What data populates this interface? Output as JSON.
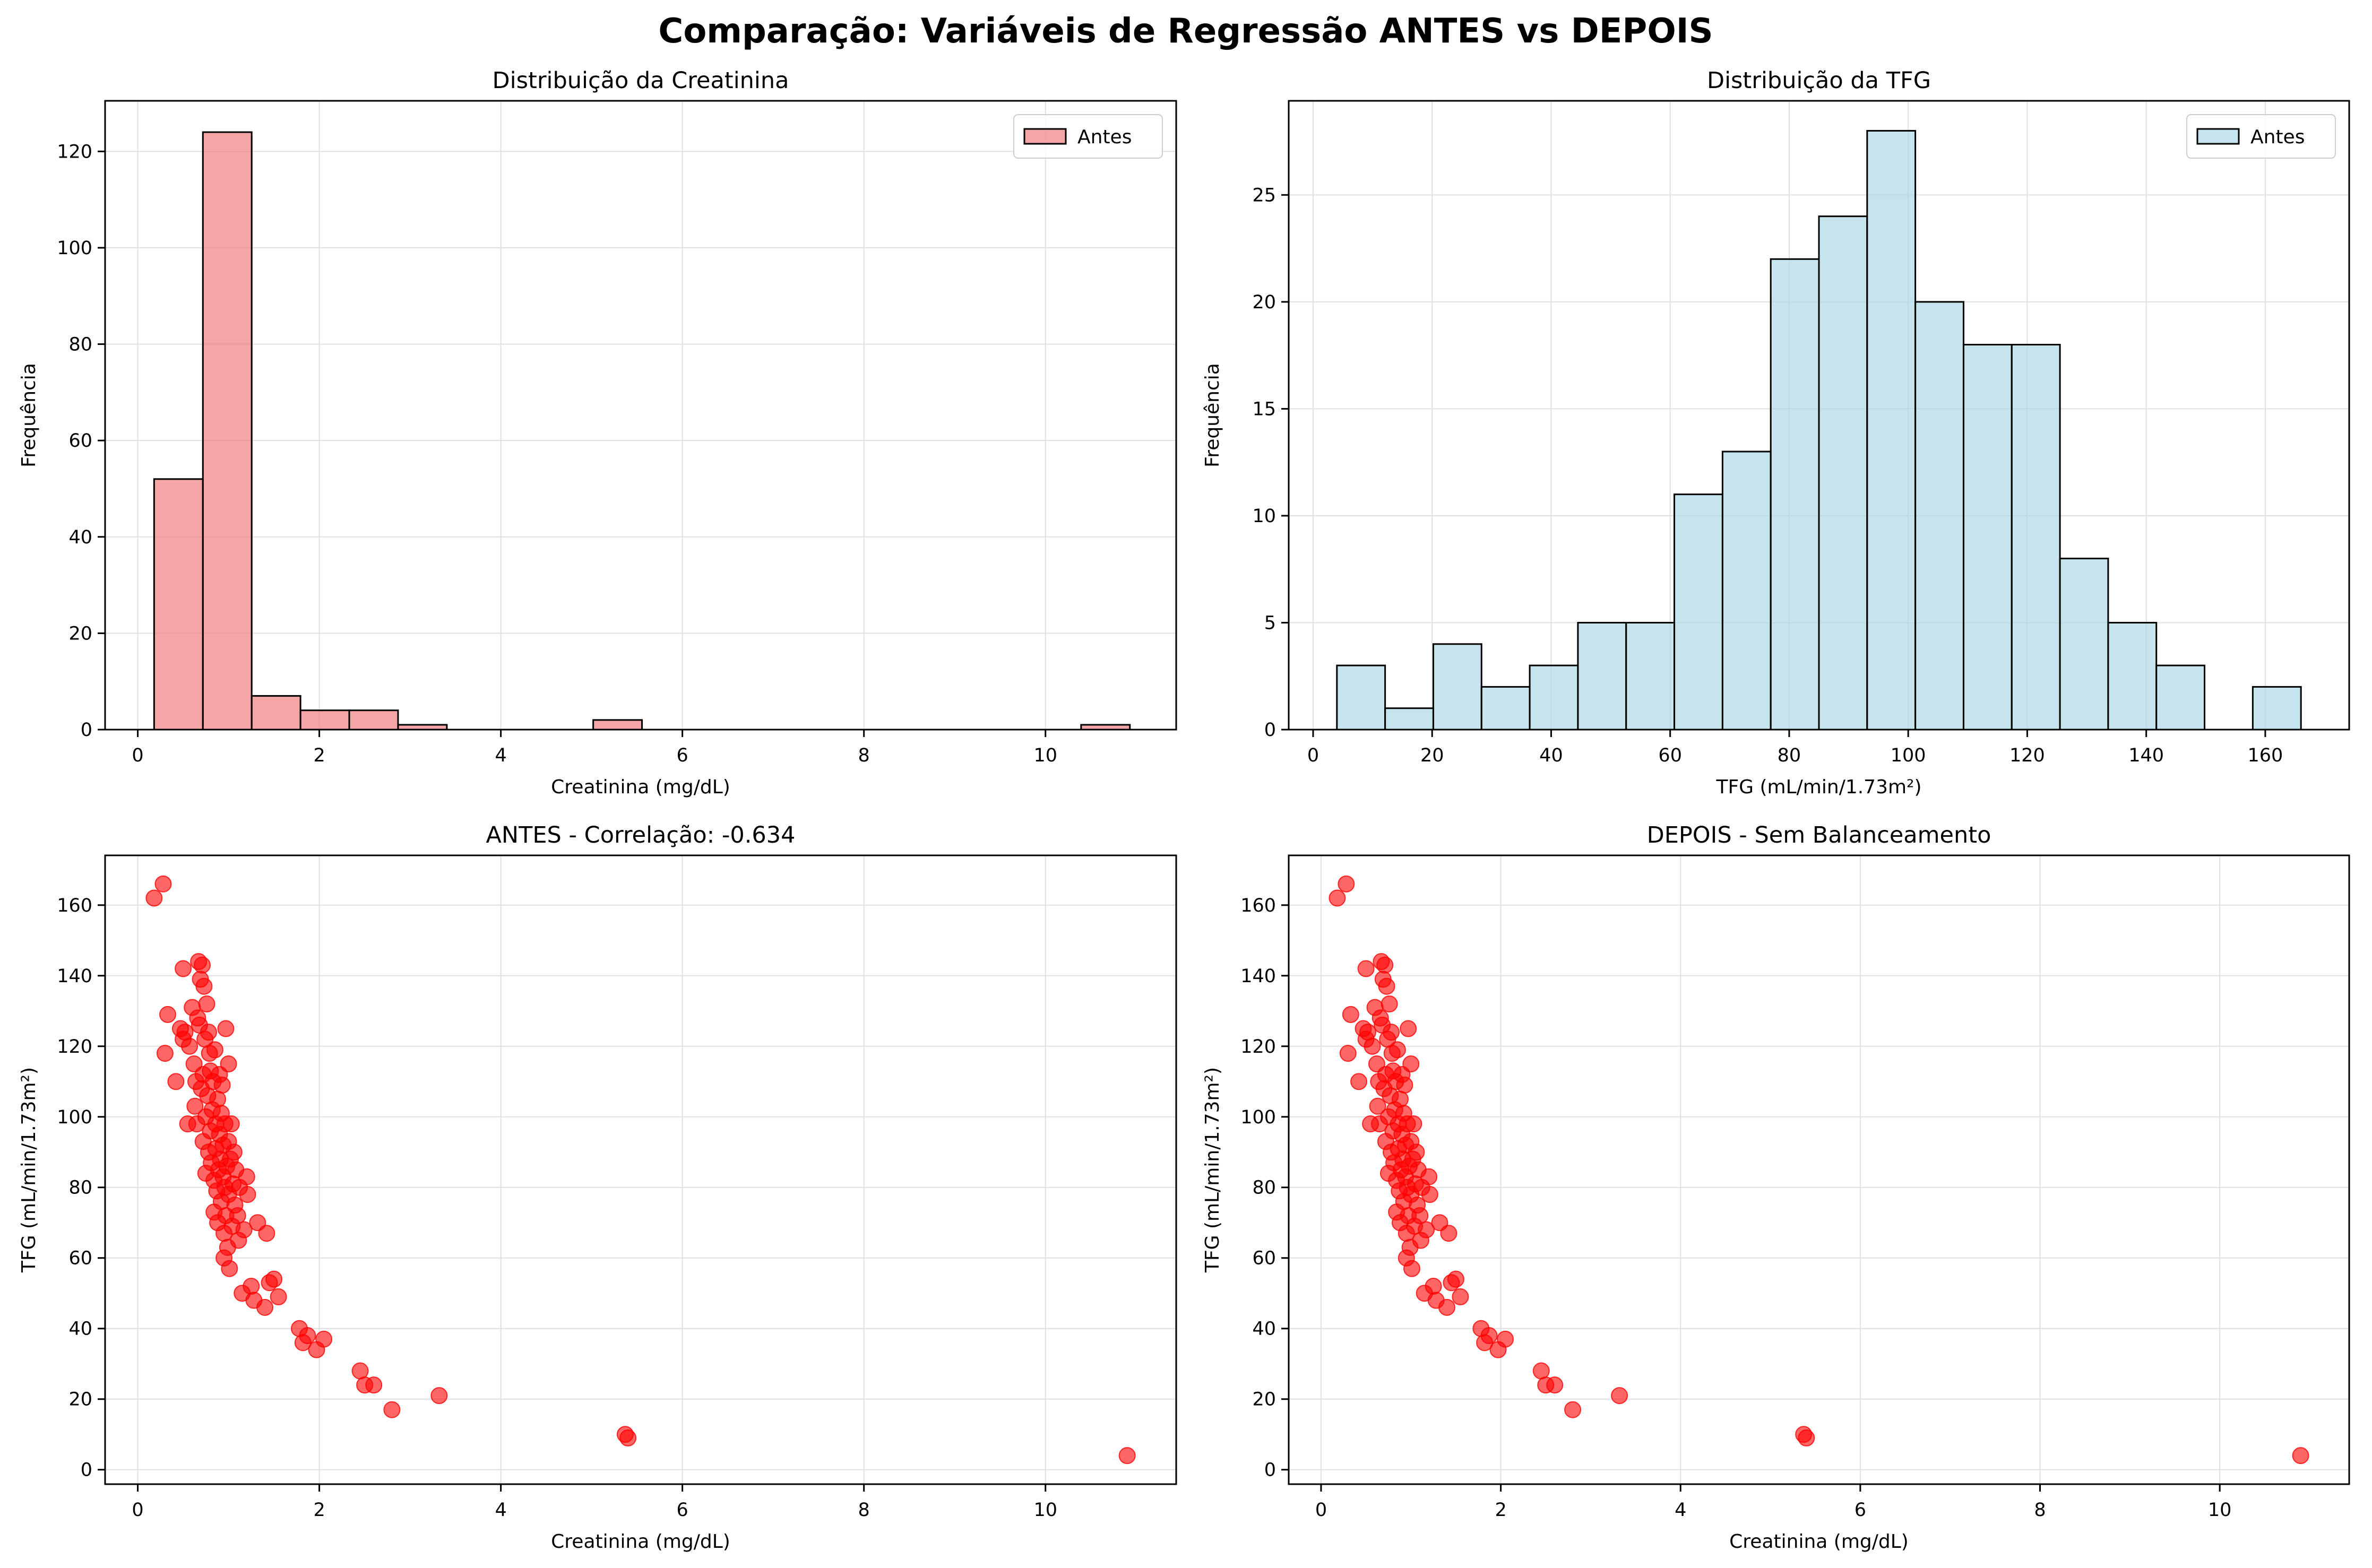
{
  "figure": {
    "suptitle": "Comparação: Variáveis de Regressão ANTES vs DEPOIS"
  },
  "colors": {
    "creat_hist": "#f08080",
    "tfg_hist": "#add8e6",
    "scatter": "#ff0000",
    "edge": "#000000",
    "grid": "#e0e0e0"
  },
  "chart_data": [
    {
      "id": "hist-creat",
      "type": "bar",
      "title": "Distribuição da Creatinina",
      "xlabel": "Creatinina (mg/dL)",
      "ylabel": "Frequência",
      "xlim": [
        -0.36,
        11.44
      ],
      "ylim": [
        0,
        130.5
      ],
      "xticks": [
        0,
        2,
        4,
        6,
        8,
        10
      ],
      "yticks": [
        0,
        20,
        40,
        60,
        80,
        100,
        120
      ],
      "bin_start": 0.18,
      "bin_width": 0.5375,
      "counts": [
        52,
        124,
        7,
        4,
        4,
        1,
        0,
        0,
        0,
        2,
        0,
        0,
        0,
        0,
        0,
        0,
        0,
        0,
        0,
        1
      ],
      "legend": {
        "label": "Antes",
        "placement": "top-right"
      },
      "grid": true
    },
    {
      "id": "hist-tfg",
      "type": "bar",
      "title": "Distribuição da TFG",
      "xlabel": "TFG (mL/min/1.73m²)",
      "ylabel": "Frequência",
      "xlim": [
        -4.1,
        174.1
      ],
      "ylim": [
        0,
        29.4
      ],
      "xticks": [
        0,
        20,
        40,
        60,
        80,
        100,
        120,
        140,
        160
      ],
      "yticks": [
        0,
        5,
        10,
        15,
        20,
        25
      ],
      "bin_start": 4,
      "bin_width": 8.1,
      "counts": [
        3,
        1,
        4,
        2,
        3,
        5,
        5,
        11,
        13,
        22,
        24,
        28,
        20,
        18,
        18,
        8,
        5,
        3,
        0,
        2
      ],
      "legend": {
        "label": "Antes",
        "placement": "top-right"
      },
      "grid": true
    },
    {
      "id": "scatter-antes",
      "type": "scatter",
      "title": "ANTES - Correlação: -0.634",
      "xlabel": "Creatinina (mg/dL)",
      "ylabel": "TFG (mL/min/1.73m²)",
      "xlim": [
        -0.36,
        11.44
      ],
      "ylim": [
        -4.1,
        174.1
      ],
      "xticks": [
        0,
        2,
        4,
        6,
        8,
        10
      ],
      "yticks": [
        0,
        20,
        40,
        60,
        80,
        100,
        120,
        140,
        160
      ],
      "points": [
        [
          0.18,
          162
        ],
        [
          0.28,
          166
        ],
        [
          0.3,
          118
        ],
        [
          0.33,
          129
        ],
        [
          0.42,
          110
        ],
        [
          0.47,
          125
        ],
        [
          0.5,
          142
        ],
        [
          0.5,
          122
        ],
        [
          0.52,
          124
        ],
        [
          0.55,
          98
        ],
        [
          0.57,
          120
        ],
        [
          0.6,
          131
        ],
        [
          0.62,
          115
        ],
        [
          0.63,
          103
        ],
        [
          0.64,
          110
        ],
        [
          0.65,
          98
        ],
        [
          0.66,
          128
        ],
        [
          0.67,
          144
        ],
        [
          0.68,
          126
        ],
        [
          0.69,
          139
        ],
        [
          0.7,
          108
        ],
        [
          0.71,
          143
        ],
        [
          0.72,
          93
        ],
        [
          0.72,
          112
        ],
        [
          0.73,
          137
        ],
        [
          0.74,
          122
        ],
        [
          0.75,
          84
        ],
        [
          0.75,
          100
        ],
        [
          0.76,
          132
        ],
        [
          0.77,
          106
        ],
        [
          0.78,
          124
        ],
        [
          0.78,
          90
        ],
        [
          0.79,
          118
        ],
        [
          0.8,
          113
        ],
        [
          0.8,
          96
        ],
        [
          0.81,
          87
        ],
        [
          0.82,
          102
        ],
        [
          0.83,
          110
        ],
        [
          0.84,
          73
        ],
        [
          0.84,
          82
        ],
        [
          0.85,
          119
        ],
        [
          0.86,
          98
        ],
        [
          0.86,
          91
        ],
        [
          0.87,
          79
        ],
        [
          0.88,
          105
        ],
        [
          0.88,
          70
        ],
        [
          0.89,
          85
        ],
        [
          0.9,
          95
        ],
        [
          0.9,
          112
        ],
        [
          0.91,
          88
        ],
        [
          0.92,
          76
        ],
        [
          0.92,
          101
        ],
        [
          0.93,
          109
        ],
        [
          0.94,
          83
        ],
        [
          0.94,
          92
        ],
        [
          0.95,
          60
        ],
        [
          0.95,
          67
        ],
        [
          0.96,
          98
        ],
        [
          0.96,
          80
        ],
        [
          0.97,
          72
        ],
        [
          0.97,
          125
        ],
        [
          0.98,
          86
        ],
        [
          0.99,
          63
        ],
        [
          1.0,
          115
        ],
        [
          1.0,
          93
        ],
        [
          1.0,
          78
        ],
        [
          1.01,
          57
        ],
        [
          1.02,
          88
        ],
        [
          1.03,
          98
        ],
        [
          1.04,
          69
        ],
        [
          1.05,
          81
        ],
        [
          1.06,
          90
        ],
        [
          1.07,
          75
        ],
        [
          1.08,
          85
        ],
        [
          1.1,
          72
        ],
        [
          1.11,
          65
        ],
        [
          1.12,
          80
        ],
        [
          1.15,
          50
        ],
        [
          1.17,
          68
        ],
        [
          1.2,
          83
        ],
        [
          1.21,
          78
        ],
        [
          1.25,
          52
        ],
        [
          1.28,
          48
        ],
        [
          1.32,
          70
        ],
        [
          1.4,
          46
        ],
        [
          1.42,
          67
        ],
        [
          1.45,
          53
        ],
        [
          1.5,
          54
        ],
        [
          1.55,
          49
        ],
        [
          1.78,
          40
        ],
        [
          1.82,
          36
        ],
        [
          1.87,
          38
        ],
        [
          1.97,
          34
        ],
        [
          2.05,
          37
        ],
        [
          2.45,
          28
        ],
        [
          2.5,
          24
        ],
        [
          2.6,
          24
        ],
        [
          2.8,
          17
        ],
        [
          3.32,
          21
        ],
        [
          5.37,
          10
        ],
        [
          5.4,
          9
        ],
        [
          10.9,
          4
        ]
      ],
      "grid": true
    },
    {
      "id": "scatter-depois",
      "type": "scatter",
      "title": "DEPOIS - Sem Balanceamento",
      "xlabel": "Creatinina (mg/dL)",
      "ylabel": "TFG (mL/min/1.73m²)",
      "xlim": [
        -0.36,
        11.44
      ],
      "ylim": [
        -4.1,
        174.1
      ],
      "xticks": [
        0,
        2,
        4,
        6,
        8,
        10
      ],
      "yticks": [
        0,
        20,
        40,
        60,
        80,
        100,
        120,
        140,
        160
      ],
      "points": [
        [
          0.18,
          162
        ],
        [
          0.28,
          166
        ],
        [
          0.3,
          118
        ],
        [
          0.33,
          129
        ],
        [
          0.42,
          110
        ],
        [
          0.47,
          125
        ],
        [
          0.5,
          142
        ],
        [
          0.5,
          122
        ],
        [
          0.52,
          124
        ],
        [
          0.55,
          98
        ],
        [
          0.57,
          120
        ],
        [
          0.6,
          131
        ],
        [
          0.62,
          115
        ],
        [
          0.63,
          103
        ],
        [
          0.64,
          110
        ],
        [
          0.65,
          98
        ],
        [
          0.66,
          128
        ],
        [
          0.67,
          144
        ],
        [
          0.68,
          126
        ],
        [
          0.69,
          139
        ],
        [
          0.7,
          108
        ],
        [
          0.71,
          143
        ],
        [
          0.72,
          93
        ],
        [
          0.72,
          112
        ],
        [
          0.73,
          137
        ],
        [
          0.74,
          122
        ],
        [
          0.75,
          84
        ],
        [
          0.75,
          100
        ],
        [
          0.76,
          132
        ],
        [
          0.77,
          106
        ],
        [
          0.78,
          124
        ],
        [
          0.78,
          90
        ],
        [
          0.79,
          118
        ],
        [
          0.8,
          113
        ],
        [
          0.8,
          96
        ],
        [
          0.81,
          87
        ],
        [
          0.82,
          102
        ],
        [
          0.83,
          110
        ],
        [
          0.84,
          73
        ],
        [
          0.84,
          82
        ],
        [
          0.85,
          119
        ],
        [
          0.86,
          98
        ],
        [
          0.86,
          91
        ],
        [
          0.87,
          79
        ],
        [
          0.88,
          105
        ],
        [
          0.88,
          70
        ],
        [
          0.89,
          85
        ],
        [
          0.9,
          95
        ],
        [
          0.9,
          112
        ],
        [
          0.91,
          88
        ],
        [
          0.92,
          76
        ],
        [
          0.92,
          101
        ],
        [
          0.93,
          109
        ],
        [
          0.94,
          83
        ],
        [
          0.94,
          92
        ],
        [
          0.95,
          60
        ],
        [
          0.95,
          67
        ],
        [
          0.96,
          98
        ],
        [
          0.96,
          80
        ],
        [
          0.97,
          72
        ],
        [
          0.97,
          125
        ],
        [
          0.98,
          86
        ],
        [
          0.99,
          63
        ],
        [
          1.0,
          115
        ],
        [
          1.0,
          93
        ],
        [
          1.0,
          78
        ],
        [
          1.01,
          57
        ],
        [
          1.02,
          88
        ],
        [
          1.03,
          98
        ],
        [
          1.04,
          69
        ],
        [
          1.05,
          81
        ],
        [
          1.06,
          90
        ],
        [
          1.07,
          75
        ],
        [
          1.08,
          85
        ],
        [
          1.1,
          72
        ],
        [
          1.11,
          65
        ],
        [
          1.12,
          80
        ],
        [
          1.15,
          50
        ],
        [
          1.17,
          68
        ],
        [
          1.2,
          83
        ],
        [
          1.21,
          78
        ],
        [
          1.25,
          52
        ],
        [
          1.28,
          48
        ],
        [
          1.32,
          70
        ],
        [
          1.4,
          46
        ],
        [
          1.42,
          67
        ],
        [
          1.45,
          53
        ],
        [
          1.5,
          54
        ],
        [
          1.55,
          49
        ],
        [
          1.78,
          40
        ],
        [
          1.82,
          36
        ],
        [
          1.87,
          38
        ],
        [
          1.97,
          34
        ],
        [
          2.05,
          37
        ],
        [
          2.45,
          28
        ],
        [
          2.5,
          24
        ],
        [
          2.6,
          24
        ],
        [
          2.8,
          17
        ],
        [
          3.32,
          21
        ],
        [
          5.37,
          10
        ],
        [
          5.4,
          9
        ],
        [
          10.9,
          4
        ]
      ],
      "grid": true
    }
  ]
}
